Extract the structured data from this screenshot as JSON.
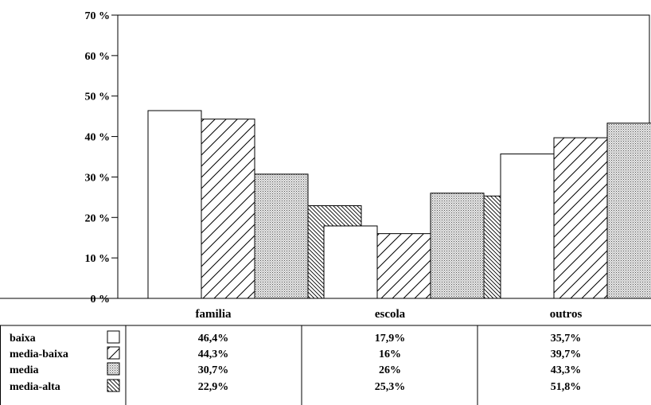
{
  "chart_data": {
    "type": "bar",
    "categories": [
      "familia",
      "escola",
      "outros"
    ],
    "series": [
      {
        "name": "baixa",
        "values": [
          46.4,
          17.9,
          35.7
        ],
        "labels": [
          "46,4%",
          "17,9%",
          "35,7%"
        ],
        "pattern": "empty"
      },
      {
        "name": "media-baixa",
        "values": [
          44.3,
          16,
          39.7
        ],
        "labels": [
          "44,3%",
          "16%",
          "39,7%"
        ],
        "pattern": "diagonal-forward"
      },
      {
        "name": "media",
        "values": [
          30.7,
          26,
          43.3
        ],
        "labels": [
          "30,7%",
          "26%",
          "43,3%"
        ],
        "pattern": "dotted"
      },
      {
        "name": "media-alta",
        "values": [
          22.9,
          25.3,
          51.8
        ],
        "labels": [
          "22,9%",
          "25,3%",
          "51,8%"
        ],
        "pattern": "diagonal-backward"
      }
    ],
    "ylim": [
      0,
      70
    ],
    "yticks": [
      "0 %",
      "10 %",
      "20 %",
      "30 %",
      "40 %",
      "50 %",
      "60 %",
      "70 %"
    ],
    "grid": false,
    "legend": "data-table-below"
  }
}
